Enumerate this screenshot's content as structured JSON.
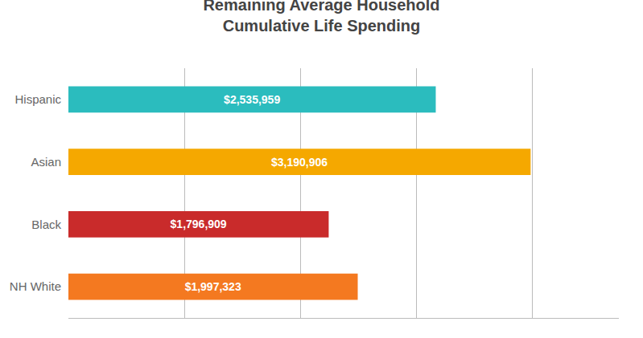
{
  "chart_data": {
    "type": "bar",
    "orientation": "horizontal",
    "title": "Remaining Average Household\nCumulative Life Spending",
    "categories": [
      "Hispanic",
      "Asian",
      "Black",
      "NH White"
    ],
    "values": [
      2535959,
      3190906,
      1796909,
      1997323
    ],
    "value_labels": [
      "$2,535,959",
      "$3,190,906",
      "$1,796,909",
      "$1,997,323"
    ],
    "colors": [
      "#2BBCBE",
      "#F5A800",
      "#C92B2B",
      "#F47920"
    ],
    "xlim": [
      0,
      3800000
    ],
    "xticks": [
      0,
      800000,
      1600000,
      2400000,
      3200000
    ],
    "grid": true,
    "data_labels": true,
    "tick_labels": "y"
  }
}
